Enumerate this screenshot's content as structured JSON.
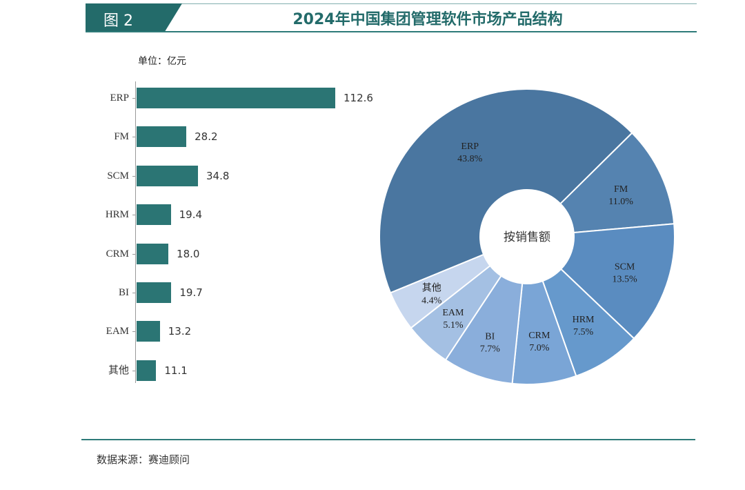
{
  "header": {
    "fig_label": "图 2",
    "title": "2024年中国集团管理软件市场产品结构"
  },
  "unit_label": "单位：亿元",
  "source": "数据来源：赛迪顾问",
  "colors": {
    "teal": "#236b6a",
    "bar": "#2b7574",
    "pie": [
      "#4a76a0",
      "#5583b0",
      "#5a8cc0",
      "#6699cc",
      "#7aa5d6",
      "#8aaedb",
      "#a4c0e3",
      "#c6d6ee"
    ]
  },
  "chart_data": [
    {
      "type": "bar",
      "orientation": "horizontal",
      "categories": [
        "ERP",
        "FM",
        "SCM",
        "HRM",
        "CRM",
        "BI",
        "EAM",
        "其他"
      ],
      "values": [
        112.6,
        28.2,
        34.8,
        19.4,
        18.0,
        19.7,
        13.2,
        11.1
      ],
      "value_labels": [
        "112.6",
        "28.2",
        "34.8",
        "19.4",
        "18.0",
        "19.7",
        "13.2",
        "11.1"
      ],
      "unit": "单位：亿元"
    },
    {
      "type": "pie",
      "donut": true,
      "center_label": "按销售额",
      "slices": [
        {
          "label": "ERP",
          "value": 43.8,
          "value_label": "43.8%"
        },
        {
          "label": "FM",
          "value": 11.0,
          "value_label": "11.0%"
        },
        {
          "label": "SCM",
          "value": 13.5,
          "value_label": "13.5%"
        },
        {
          "label": "HRM",
          "value": 7.5,
          "value_label": "7.5%"
        },
        {
          "label": "CRM",
          "value": 7.0,
          "value_label": "7.0%"
        },
        {
          "label": "BI",
          "value": 7.7,
          "value_label": "7.7%"
        },
        {
          "label": "EAM",
          "value": 5.1,
          "value_label": "5.1%"
        },
        {
          "label": "其他",
          "value": 4.4,
          "value_label": "4.4%"
        }
      ]
    }
  ]
}
